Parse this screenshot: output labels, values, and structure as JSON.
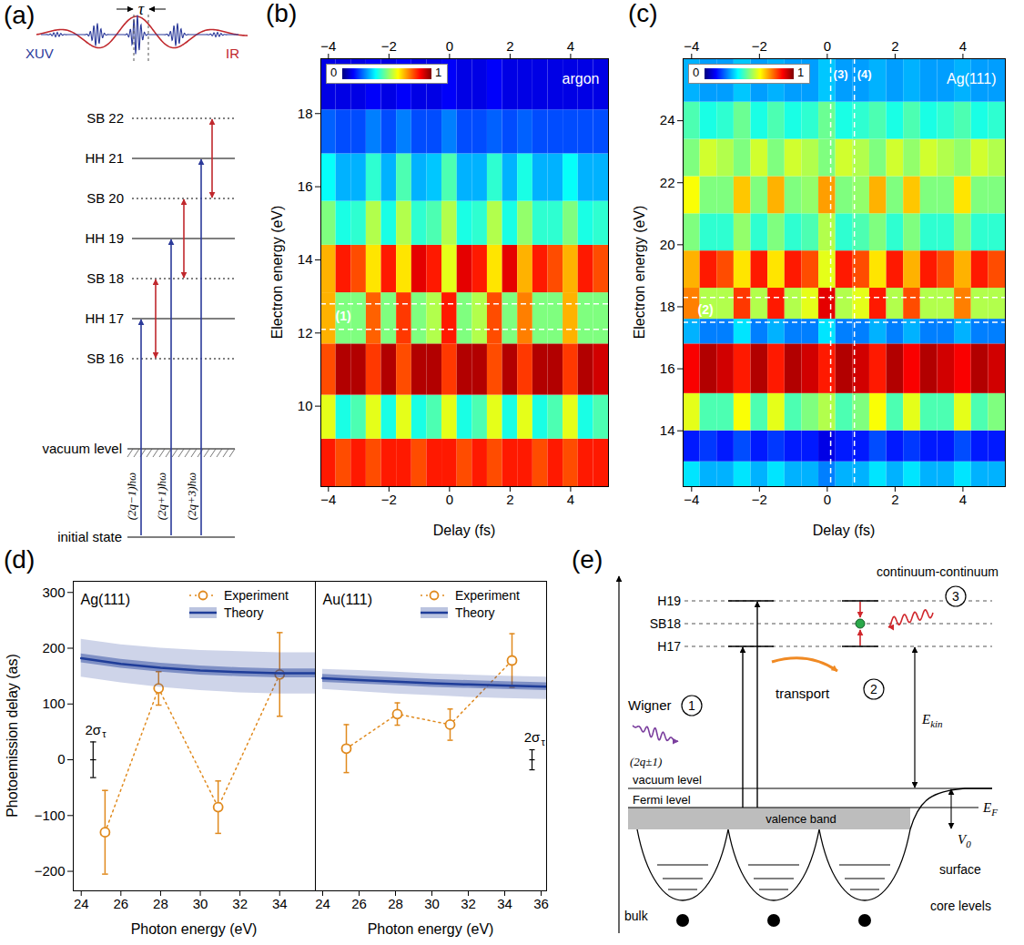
{
  "chart_data": [
    {
      "panel_label": "(b)",
      "type": "heatmap",
      "title": "argon",
      "x_label": "Delay (fs)",
      "y_label": "Electron energy (eV)",
      "xlim": [
        -4.25,
        5.25
      ],
      "xticks": [
        -4,
        -2,
        0,
        2,
        4
      ],
      "ylim": [
        7.8,
        19.5
      ],
      "yticks": [
        10,
        12,
        14,
        16,
        18
      ],
      "x_edges": [
        -4.25,
        -3.75,
        -3.25,
        -2.75,
        -2.25,
        -1.75,
        -1.25,
        -0.75,
        -0.25,
        0.25,
        0.75,
        1.25,
        1.75,
        2.25,
        2.75,
        3.25,
        3.75,
        4.25,
        4.75,
        5.25
      ],
      "y_edges": [
        7.8,
        9.1,
        10.3,
        11.7,
        13.1,
        14.4,
        15.6,
        16.9,
        18.1,
        19.5
      ],
      "values": [
        [
          0.85,
          0.8,
          0.85,
          0.8,
          0.85,
          0.85,
          0.8,
          0.85,
          0.85,
          0.8,
          0.85,
          0.8,
          0.85,
          0.85,
          0.8,
          0.85,
          0.8,
          0.85,
          0.85
        ],
        [
          0.6,
          0.4,
          0.45,
          0.6,
          0.4,
          0.6,
          0.4,
          0.45,
          0.6,
          0.4,
          0.45,
          0.6,
          0.4,
          0.6,
          0.4,
          0.45,
          0.6,
          0.4,
          0.45
        ],
        [
          0.8,
          0.95,
          0.95,
          0.82,
          0.95,
          0.8,
          0.95,
          0.95,
          0.82,
          0.95,
          0.95,
          0.8,
          0.95,
          0.82,
          0.95,
          0.95,
          0.82,
          0.95,
          0.92
        ],
        [
          0.7,
          0.5,
          0.5,
          0.78,
          0.5,
          0.82,
          0.5,
          0.55,
          0.85,
          0.5,
          0.55,
          0.8,
          0.5,
          0.75,
          0.5,
          0.5,
          0.7,
          0.5,
          0.5
        ],
        [
          0.7,
          0.85,
          0.8,
          0.65,
          0.85,
          0.65,
          0.9,
          0.85,
          0.6,
          0.9,
          0.85,
          0.65,
          0.9,
          0.7,
          0.85,
          0.8,
          0.7,
          0.85,
          0.8
        ],
        [
          0.5,
          0.4,
          0.42,
          0.55,
          0.4,
          0.55,
          0.42,
          0.45,
          0.55,
          0.4,
          0.42,
          0.55,
          0.4,
          0.52,
          0.42,
          0.42,
          0.5,
          0.4,
          0.42
        ],
        [
          0.38,
          0.3,
          0.3,
          0.42,
          0.3,
          0.45,
          0.3,
          0.32,
          0.45,
          0.3,
          0.3,
          0.42,
          0.3,
          0.4,
          0.3,
          0.3,
          0.38,
          0.3,
          0.3
        ],
        [
          0.22,
          0.2,
          0.2,
          0.25,
          0.2,
          0.25,
          0.2,
          0.2,
          0.25,
          0.2,
          0.2,
          0.22,
          0.2,
          0.22,
          0.2,
          0.2,
          0.2,
          0.2,
          0.2
        ],
        [
          0.1,
          0.1,
          0.1,
          0.12,
          0.1,
          0.12,
          0.1,
          0.1,
          0.12,
          0.1,
          0.1,
          0.12,
          0.1,
          0.1,
          0.1,
          0.1,
          0.1,
          0.1,
          0.1
        ]
      ],
      "colorbar": {
        "range": [
          0,
          1
        ],
        "ticks": [
          0,
          1
        ]
      },
      "hlines": {
        "values": [
          12.1,
          12.8
        ],
        "label": "(1)"
      }
    },
    {
      "panel_label": "(c)",
      "type": "heatmap",
      "title": "Ag(111)",
      "x_label": "Delay (fs)",
      "y_label": "Electron energy (eV)",
      "xlim": [
        -4.25,
        5.25
      ],
      "xticks": [
        -4,
        -2,
        0,
        2,
        4
      ],
      "ylim": [
        12.2,
        26
      ],
      "yticks": [
        14,
        16,
        18,
        20,
        22,
        24
      ],
      "x_edges": [
        -4.25,
        -3.75,
        -3.25,
        -2.75,
        -2.25,
        -1.75,
        -1.25,
        -0.75,
        -0.25,
        0.25,
        0.75,
        1.25,
        1.75,
        2.25,
        2.75,
        3.25,
        3.75,
        4.25,
        4.75,
        5.25
      ],
      "y_edges": [
        12.2,
        13.0,
        14.0,
        15.2,
        16.8,
        17.6,
        18.6,
        19.8,
        21.0,
        22.2,
        23.4,
        24.6,
        26.0
      ],
      "values": [
        [
          0.35,
          0.3,
          0.3,
          0.35,
          0.3,
          0.35,
          0.3,
          0.3,
          0.25,
          0.3,
          0.3,
          0.35,
          0.3,
          0.35,
          0.3,
          0.3,
          0.35,
          0.3,
          0.3
        ],
        [
          0.15,
          0.18,
          0.15,
          0.2,
          0.15,
          0.18,
          0.15,
          0.15,
          0.1,
          0.15,
          0.15,
          0.2,
          0.15,
          0.18,
          0.15,
          0.15,
          0.2,
          0.15,
          0.15
        ],
        [
          0.6,
          0.45,
          0.45,
          0.62,
          0.45,
          0.6,
          0.45,
          0.5,
          0.55,
          0.45,
          0.5,
          0.62,
          0.45,
          0.6,
          0.45,
          0.45,
          0.6,
          0.45,
          0.5
        ],
        [
          0.88,
          0.95,
          0.92,
          0.85,
          0.95,
          0.85,
          0.95,
          0.92,
          0.85,
          0.95,
          0.92,
          0.85,
          0.95,
          0.88,
          0.95,
          0.92,
          0.88,
          0.95,
          0.92
        ],
        [
          0.3,
          0.25,
          0.25,
          0.35,
          0.25,
          0.3,
          0.25,
          0.25,
          0.35,
          0.25,
          0.25,
          0.3,
          0.25,
          0.3,
          0.25,
          0.25,
          0.3,
          0.25,
          0.25
        ],
        [
          0.75,
          0.55,
          0.55,
          0.82,
          0.55,
          0.85,
          0.55,
          0.6,
          0.9,
          0.55,
          0.6,
          0.85,
          0.55,
          0.8,
          0.55,
          0.55,
          0.75,
          0.55,
          0.55
        ],
        [
          0.7,
          0.85,
          0.8,
          0.65,
          0.85,
          0.65,
          0.85,
          0.8,
          0.6,
          0.85,
          0.8,
          0.65,
          0.85,
          0.7,
          0.85,
          0.8,
          0.7,
          0.85,
          0.8
        ],
        [
          0.5,
          0.42,
          0.42,
          0.52,
          0.42,
          0.5,
          0.42,
          0.45,
          0.55,
          0.42,
          0.45,
          0.5,
          0.42,
          0.5,
          0.42,
          0.42,
          0.5,
          0.42,
          0.42
        ],
        [
          0.62,
          0.5,
          0.5,
          0.68,
          0.5,
          0.7,
          0.5,
          0.52,
          0.72,
          0.5,
          0.52,
          0.7,
          0.5,
          0.68,
          0.5,
          0.5,
          0.65,
          0.5,
          0.5
        ],
        [
          0.5,
          0.58,
          0.55,
          0.5,
          0.58,
          0.5,
          0.58,
          0.55,
          0.5,
          0.58,
          0.55,
          0.5,
          0.58,
          0.52,
          0.58,
          0.55,
          0.52,
          0.58,
          0.55
        ],
        [
          0.45,
          0.4,
          0.42,
          0.48,
          0.4,
          0.45,
          0.4,
          0.42,
          0.48,
          0.4,
          0.42,
          0.45,
          0.4,
          0.45,
          0.4,
          0.42,
          0.45,
          0.4,
          0.42
        ],
        [
          0.3,
          0.28,
          0.28,
          0.32,
          0.28,
          0.3,
          0.28,
          0.28,
          0.32,
          0.28,
          0.28,
          0.3,
          0.28,
          0.3,
          0.28,
          0.28,
          0.3,
          0.28,
          0.28
        ]
      ],
      "colorbar": {
        "range": [
          0,
          1
        ],
        "ticks": [
          0,
          1
        ]
      },
      "hlines": {
        "values": [
          17.5,
          18.3
        ],
        "label": "(2)"
      },
      "vlines": [
        {
          "value": 0.1,
          "label": "(3)"
        },
        {
          "value": 0.8,
          "label": "(4)"
        }
      ]
    },
    {
      "panel_label": "(d)",
      "type": "line",
      "x_label": "Photon energy (eV)",
      "y_label": "Photoemission delay (as)",
      "ylim": [
        -235,
        320
      ],
      "yticks": [
        -200,
        -100,
        0,
        100,
        200,
        300
      ],
      "legend": "top-right",
      "panels": [
        {
          "title": "Ag(111)",
          "xlim": [
            23.6,
            35.8
          ],
          "xticks": [
            24,
            26,
            28,
            30,
            32,
            34
          ],
          "series": [
            {
              "name": "Experiment",
              "color": "#e08a1e",
              "line_style": "dotted",
              "marker": "circle",
              "x": [
                25.2,
                27.9,
                30.9,
                34.0
              ],
              "values": [
                -130,
                128,
                -85,
                153
              ],
              "errors": [
                75,
                30,
                47,
                75
              ]
            },
            {
              "name": "Theory",
              "color": "#1f3d99",
              "line_style": "solid",
              "x": [
                24,
                26,
                28,
                30,
                32,
                34,
                35.8
              ],
              "values": [
                182,
                172,
                165,
                160,
                157,
                155,
                155
              ],
              "band_inner": {
                "lower": [
                  174,
                  164,
                  157,
                  152,
                  149,
                  147,
                  147
                ],
                "upper": [
                  190,
                  180,
                  173,
                  168,
                  165,
                  163,
                  163
                ]
              },
              "band_outer": {
                "lower": [
                  148,
                  138,
                  130,
                  124,
                  120,
                  118,
                  118
                ],
                "upper": [
                  216,
                  206,
                  200,
                  196,
                  194,
                  192,
                  192
                ]
              }
            }
          ],
          "sigma_bar": {
            "label": "2σ",
            "label_sub": "τ",
            "x": 24.6,
            "value": 0,
            "error": 32
          }
        },
        {
          "title": "Au(111)",
          "xlim": [
            23.6,
            36.3
          ],
          "xticks": [
            24,
            26,
            28,
            30,
            32,
            34,
            36
          ],
          "series": [
            {
              "name": "Experiment",
              "color": "#e08a1e",
              "line_style": "dotted",
              "marker": "circle",
              "x": [
                25.3,
                28.1,
                31.0,
                34.4
              ],
              "values": [
                20,
                82,
                63,
                178
              ],
              "errors": [
                43,
                20,
                28,
                48
              ]
            },
            {
              "name": "Theory",
              "color": "#1f3d99",
              "line_style": "solid",
              "x": [
                24,
                26,
                28,
                30,
                32,
                34,
                36.3
              ],
              "values": [
                146,
                143,
                140,
                137,
                135,
                133,
                131
              ],
              "band_inner": {
                "lower": [
                  139,
                  136,
                  133,
                  130,
                  128,
                  126,
                  124
                ],
                "upper": [
                  153,
                  150,
                  147,
                  144,
                  142,
                  140,
                  138
                ]
              },
              "band_outer": {
                "lower": [
                  126,
                  122,
                  118,
                  115,
                  112,
                  110,
                  108
                ],
                "upper": [
                  162,
                  160,
                  157,
                  154,
                  152,
                  150,
                  148
                ]
              }
            }
          ],
          "sigma_bar": {
            "label": "2σ",
            "label_sub": "τ",
            "x": 35.5,
            "value": 0,
            "error": 18
          }
        }
      ]
    }
  ],
  "diagrams": {
    "a": {
      "panel_label": "(a)",
      "pulse": {
        "xuv": "XUV",
        "ir": "IR",
        "delay": "τ"
      },
      "levels": [
        {
          "label": "SB 22",
          "kind": "sideband"
        },
        {
          "label": "HH 21",
          "kind": "harmonic"
        },
        {
          "label": "SB 20",
          "kind": "sideband"
        },
        {
          "label": "HH 19",
          "kind": "harmonic"
        },
        {
          "label": "SB 18",
          "kind": "sideband"
        },
        {
          "label": "HH 17",
          "kind": "harmonic"
        },
        {
          "label": "SB 16",
          "kind": "sideband"
        }
      ],
      "vacuum_level": "vacuum level",
      "initial_state": "initial state",
      "photons": [
        "(2q−1)ħω",
        "(2q+1)ħω",
        "(2q+3)ħω"
      ]
    },
    "e": {
      "panel_label": "(e)",
      "top_label": "continuum-continuum",
      "levels": [
        "H19",
        "SB18",
        "H17"
      ],
      "steps": [
        {
          "number": "1",
          "label": "Wigner"
        },
        {
          "number": "2",
          "label": "transport"
        },
        {
          "number": "3"
        }
      ],
      "photon_label": "(2q±1)",
      "kinetic_energy": {
        "text": "E",
        "sub": "kin"
      },
      "vacuum_level": "vacuum level",
      "fermi_level": "Fermi level",
      "valence_band": "valence band",
      "fermi_energy": {
        "text": "E",
        "sub": "F"
      },
      "inner_potential": {
        "text": "V",
        "sub": "0"
      },
      "surface": "surface",
      "bulk": "bulk",
      "core_levels": "core levels"
    }
  }
}
